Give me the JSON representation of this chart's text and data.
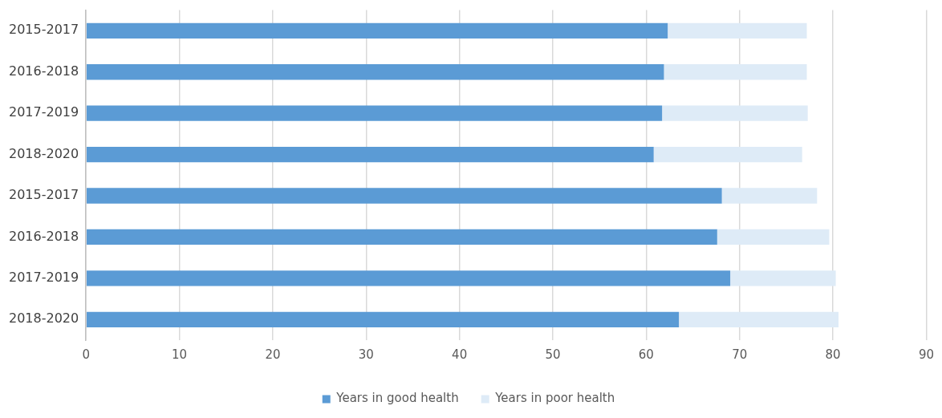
{
  "chart_data": {
    "type": "bar",
    "orientation": "horizontal",
    "stacked": true,
    "categories": [
      "2015-2017",
      "2016-2018",
      "2017-2019",
      "2018-2020",
      "2015-2017",
      "2016-2018",
      "2017-2019",
      "2018-2020"
    ],
    "series": [
      {
        "name": "Years in good health",
        "color": "#5b9bd5",
        "values": [
          62.3,
          61.9,
          61.7,
          60.8,
          68.1,
          67.6,
          69.0,
          63.5
        ]
      },
      {
        "name": "Years in poor health",
        "color": "#deebf7",
        "values": [
          14.9,
          15.3,
          15.6,
          15.9,
          10.2,
          12.0,
          11.3,
          17.1
        ]
      }
    ],
    "xlim": [
      0,
      90
    ],
    "xticks": [
      0,
      10,
      20,
      30,
      40,
      50,
      60,
      70,
      80,
      90
    ],
    "grid": "x",
    "legend": "bottom"
  }
}
